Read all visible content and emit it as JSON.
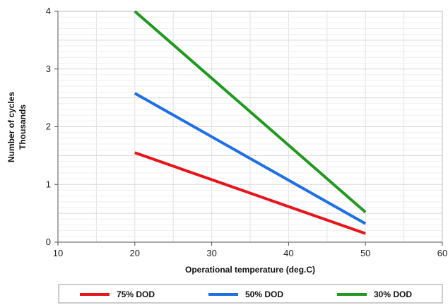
{
  "chart_data": {
    "type": "line",
    "xlabel": "Operational temperature (deg.C)",
    "ylabel": [
      "Number of cycles",
      "Thousands"
    ],
    "xlim": [
      10,
      60
    ],
    "ylim": [
      0,
      4
    ],
    "x_ticks": [
      10,
      20,
      30,
      40,
      50,
      60
    ],
    "y_ticks": [
      0,
      1,
      2,
      3,
      4
    ],
    "grid": true,
    "legend_position": "bottom",
    "series": [
      {
        "name": "75% DOD",
        "color": "#e8141c",
        "x": [
          20,
          50
        ],
        "y": [
          1.55,
          0.15
        ]
      },
      {
        "name": "50% DOD",
        "color": "#1e6fe6",
        "x": [
          20,
          50
        ],
        "y": [
          2.58,
          0.32
        ]
      },
      {
        "name": "30% DOD",
        "color": "#1f9a1f",
        "x": [
          20,
          50
        ],
        "y": [
          4.0,
          0.52
        ]
      }
    ]
  }
}
